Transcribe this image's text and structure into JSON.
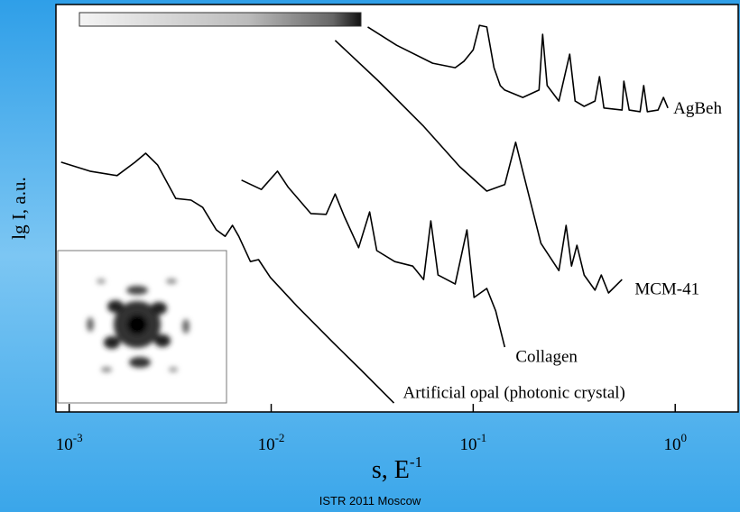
{
  "chart_data": {
    "type": "line",
    "x_label": "s, E",
    "x_label_exponent": "-1",
    "y_label": "lg I, a.u.",
    "x_log": true,
    "xlim": [
      0.00086,
      2.05
    ],
    "ylim": [
      0,
      100
    ],
    "xticks": [
      {
        "value": 0.001,
        "label": "10",
        "exponent": "-3"
      },
      {
        "value": 0.01,
        "label": "10",
        "exponent": "-2"
      },
      {
        "value": 0.1,
        "label": "10",
        "exponent": "-1"
      },
      {
        "value": 1,
        "label": "10",
        "exponent": "0"
      }
    ],
    "series": [
      {
        "name": "AgBeh",
        "color": "#000000",
        "x": [
          0.03006,
          0.04177,
          0.063,
          0.0814,
          0.0902,
          0.1,
          0.1074,
          0.1167,
          0.1267,
          0.1361,
          0.1433,
          0.176,
          0.2118,
          0.2207,
          0.2323,
          0.2656,
          0.3003,
          0.3194,
          0.3541,
          0.4006,
          0.4217,
          0.4436,
          0.5456,
          0.557,
          0.5919,
          0.67,
          0.6984,
          0.7278,
          0.8227,
          0.875,
          0.9204
        ],
        "values": [
          94.5,
          90.0,
          85.6,
          84.5,
          86.1,
          88.9,
          94.9,
          94.5,
          84.5,
          80.1,
          79.0,
          77.2,
          79.0,
          92.7,
          80.1,
          76.3,
          87.8,
          76.3,
          75.0,
          76.3,
          82.3,
          74.6,
          74.1,
          81.2,
          74.1,
          73.7,
          80.1,
          73.7,
          74.1,
          77.2,
          74.6
        ]
      },
      {
        "name": "MCM-41",
        "color": "#000000",
        "x": [
          0.02074,
          0.034,
          0.0568,
          0.0857,
          0.1167,
          0.1433,
          0.1622,
          0.176,
          0.2163,
          0.2656,
          0.2884,
          0.3068,
          0.3262,
          0.3541,
          0.4006,
          0.4306,
          0.4674,
          0.5456
        ],
        "values": [
          91.2,
          81.2,
          70.1,
          60.2,
          54.2,
          55.8,
          66.2,
          59.1,
          41.4,
          34.7,
          45.8,
          35.8,
          40.9,
          33.6,
          29.9,
          33.6,
          29.2,
          32.5
        ]
      },
      {
        "name": "Collagen",
        "color": "#000000",
        "x": [
          0.00713,
          0.00894,
          0.01074,
          0.01216,
          0.01571,
          0.01871,
          0.02074,
          0.023,
          0.0271,
          0.0307,
          0.0333,
          0.0409,
          0.0502,
          0.0568,
          0.0617,
          0.067,
          0.0814,
          0.0931,
          0.101,
          0.1167,
          0.1293,
          0.1433
        ],
        "values": [
          56.9,
          54.6,
          59.1,
          55.1,
          48.7,
          48.5,
          53.5,
          48.0,
          40.3,
          49.1,
          39.6,
          36.9,
          35.8,
          32.5,
          46.9,
          33.6,
          31.4,
          44.7,
          28.1,
          30.3,
          24.8,
          15.9
        ]
      },
      {
        "name": "Artificial opal (photonic crystal)",
        "color": "#000000",
        "x": [
          0.000912,
          0.001267,
          0.001726,
          0.00212,
          0.00239,
          0.00274,
          0.00337,
          0.00401,
          0.00458,
          0.00535,
          0.00592,
          0.00643,
          0.00691,
          0.00789,
          0.00866,
          0.00991,
          0.01346,
          0.0203,
          0.0277,
          0.0405
        ],
        "values": [
          61.3,
          59.1,
          58.0,
          61.3,
          63.5,
          60.6,
          52.4,
          52.0,
          50.2,
          44.7,
          43.1,
          45.8,
          43.1,
          36.9,
          37.4,
          33.0,
          25.9,
          17.0,
          10.4,
          2.2
        ]
      }
    ]
  },
  "footer": "ISTR 2011 Moscow"
}
